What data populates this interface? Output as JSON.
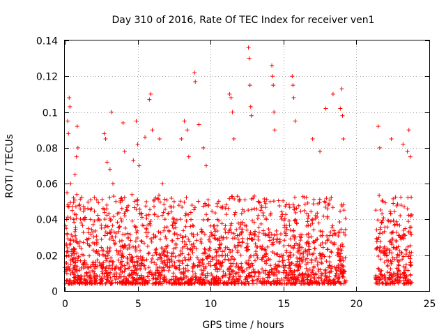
{
  "chart_data": {
    "type": "scatter",
    "title": "Day 310 of 2016, Rate Of TEC Index for receiver ven1",
    "xlabel": "GPS time / hours",
    "ylabel": "ROTI / TECUs",
    "xlim": [
      0,
      25
    ],
    "ylim": [
      0,
      0.14
    ],
    "xticks": [
      0,
      5,
      10,
      15,
      20,
      25
    ],
    "yticks": [
      0,
      0.02,
      0.04,
      0.06,
      0.08,
      0.1,
      0.12,
      0.14
    ],
    "xtick_labels": [
      "0",
      "5",
      "10",
      "15",
      "20",
      "25"
    ],
    "ytick_labels": [
      "0",
      "0.02",
      "0.04",
      "0.06",
      "0.08",
      "0.1",
      "0.12",
      "0.14"
    ],
    "grid": true,
    "legend": "none",
    "marker": "plus",
    "series_color": "#ff0000",
    "data_gap_hours": [
      19.3,
      21.3
    ],
    "series": [
      {
        "points": [
          [
            0.1,
            0.035
          ],
          [
            0.15,
            0.055
          ],
          [
            0.2,
            0.095
          ],
          [
            0.25,
            0.088
          ],
          [
            0.3,
            0.108
          ],
          [
            0.35,
            0.103
          ],
          [
            0.4,
            0.06
          ],
          [
            0.5,
            0.045
          ],
          [
            0.6,
            0.052
          ],
          [
            0.7,
            0.065
          ],
          [
            0.8,
            0.075
          ],
          [
            0.85,
            0.092
          ],
          [
            0.9,
            0.08
          ],
          [
            1.0,
            0.025
          ],
          [
            1.3,
            0.02
          ],
          [
            2.7,
            0.088
          ],
          [
            2.8,
            0.085
          ],
          [
            2.9,
            0.072
          ],
          [
            3.1,
            0.068
          ],
          [
            3.2,
            0.1
          ],
          [
            3.3,
            0.06
          ],
          [
            3.5,
            0.05
          ],
          [
            4.0,
            0.094
          ],
          [
            4.1,
            0.078
          ],
          [
            4.3,
            0.045
          ],
          [
            4.7,
            0.073
          ],
          [
            4.9,
            0.095
          ],
          [
            5.0,
            0.082
          ],
          [
            5.1,
            0.07
          ],
          [
            5.5,
            0.086
          ],
          [
            5.8,
            0.107
          ],
          [
            5.9,
            0.11
          ],
          [
            6.0,
            0.09
          ],
          [
            6.5,
            0.085
          ],
          [
            6.7,
            0.06
          ],
          [
            7.5,
            0.05
          ],
          [
            8.0,
            0.085
          ],
          [
            8.2,
            0.095
          ],
          [
            8.4,
            0.09
          ],
          [
            8.5,
            0.075
          ],
          [
            8.9,
            0.122
          ],
          [
            8.95,
            0.117
          ],
          [
            9.2,
            0.093
          ],
          [
            9.5,
            0.08
          ],
          [
            9.7,
            0.07
          ],
          [
            11.3,
            0.11
          ],
          [
            11.4,
            0.108
          ],
          [
            11.5,
            0.1
          ],
          [
            11.6,
            0.085
          ],
          [
            12.6,
            0.136
          ],
          [
            12.65,
            0.13
          ],
          [
            12.7,
            0.115
          ],
          [
            12.75,
            0.103
          ],
          [
            12.8,
            0.098
          ],
          [
            14.2,
            0.126
          ],
          [
            14.25,
            0.12
          ],
          [
            14.3,
            0.115
          ],
          [
            14.35,
            0.1
          ],
          [
            14.4,
            0.09
          ],
          [
            15.6,
            0.12
          ],
          [
            15.65,
            0.115
          ],
          [
            15.7,
            0.108
          ],
          [
            15.8,
            0.095
          ],
          [
            17.0,
            0.085
          ],
          [
            17.5,
            0.078
          ],
          [
            17.9,
            0.102
          ],
          [
            18.4,
            0.11
          ],
          [
            18.9,
            0.102
          ],
          [
            19.0,
            0.113
          ],
          [
            19.05,
            0.098
          ],
          [
            19.1,
            0.085
          ],
          [
            21.5,
            0.092
          ],
          [
            21.6,
            0.08
          ],
          [
            22.4,
            0.085
          ],
          [
            23.2,
            0.082
          ],
          [
            23.5,
            0.078
          ],
          [
            23.6,
            0.09
          ],
          [
            23.7,
            0.075
          ]
        ]
      }
    ]
  }
}
